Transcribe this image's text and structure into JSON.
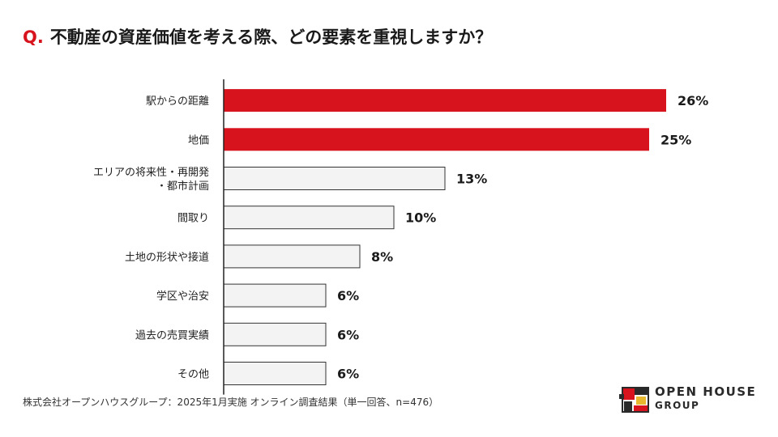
{
  "title": {
    "prefix": "Q.",
    "question": "不動産の資産価値を考える際、どの要素を重視しますか？"
  },
  "chart_data": {
    "type": "bar",
    "orientation": "horizontal",
    "categories": [
      [
        "駅からの距離"
      ],
      [
        "地価"
      ],
      [
        "エリアの将来性・再開発",
        "・都市計画"
      ],
      [
        "間取り"
      ],
      [
        "土地の形状や接道"
      ],
      [
        "学区や治安"
      ],
      [
        "過去の売買実績"
      ],
      [
        "その他"
      ]
    ],
    "values": [
      26,
      25,
      13,
      10,
      8,
      6,
      6,
      6
    ],
    "value_labels": [
      "26%",
      "25%",
      "13%",
      "10%",
      "8%",
      "6%",
      "6%",
      "6%"
    ],
    "highlight": [
      true,
      true,
      false,
      false,
      false,
      false,
      false,
      false
    ],
    "unit": "%",
    "xlim": [
      0,
      26
    ],
    "grid": false,
    "colors": {
      "highlight": "#d7141e",
      "normal": "#f3f3f3",
      "normal_border": "#333333",
      "axis": "#222222"
    }
  },
  "footnote": "株式会社オープンハウスグループ：2025年1月実施 オンライン調査結果（単一回答、n=476）",
  "logo": {
    "line1": "OPEN HOUSE",
    "line2": "GROUP"
  }
}
